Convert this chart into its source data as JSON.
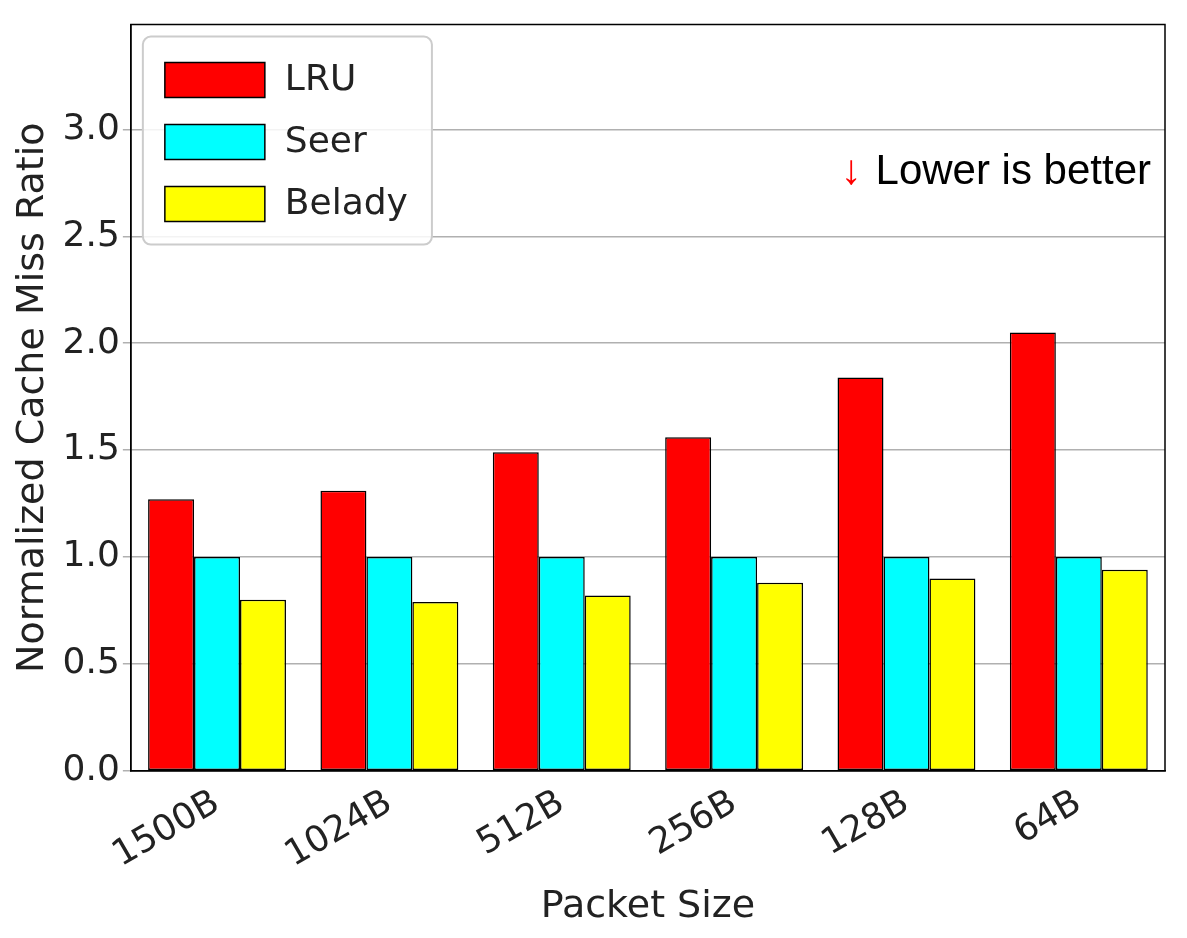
{
  "chart_data": {
    "type": "bar",
    "xlabel": "Packet Size",
    "ylabel": "Normalized Cache Miss Ratio",
    "categories": [
      "1500B",
      "1024B",
      "512B",
      "256B",
      "128B",
      "64B"
    ],
    "series": [
      {
        "name": "LRU",
        "color": "#ff0000",
        "values": [
          1.27,
          1.31,
          1.49,
          1.56,
          1.84,
          2.05
        ]
      },
      {
        "name": "Seer",
        "color": "#00ffff",
        "values": [
          1.0,
          1.0,
          1.0,
          1.0,
          1.0,
          1.0
        ]
      },
      {
        "name": "Belady",
        "color": "#ffff00",
        "values": [
          0.8,
          0.79,
          0.82,
          0.88,
          0.9,
          0.94
        ]
      }
    ],
    "ylim": [
      0,
      3.49
    ],
    "yticks": [
      {
        "value": 0,
        "label": "0.0"
      },
      {
        "value": 0.5,
        "label": "0.5"
      },
      {
        "value": 1,
        "label": "1.0"
      },
      {
        "value": 1.5,
        "label": "1.5"
      },
      {
        "value": 2,
        "label": "2.0"
      },
      {
        "value": 2.5,
        "label": "2.5"
      },
      {
        "value": 3,
        "label": "3.0"
      }
    ],
    "grid": "y",
    "legend": "top left",
    "annotations": [
      "↓",
      "Lower is better"
    ]
  }
}
